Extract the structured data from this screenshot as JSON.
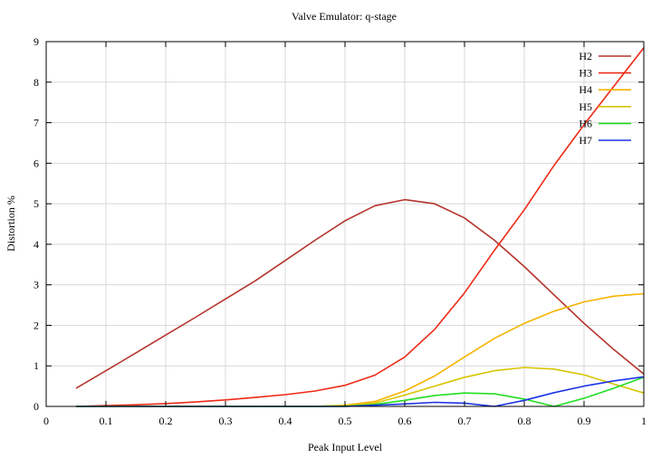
{
  "chart_data": {
    "type": "line",
    "title": "Valve Emulator: q-stage",
    "xlabel": "Peak Input Level",
    "ylabel": "Distortion %",
    "xlim": [
      0,
      1
    ],
    "ylim": [
      0,
      9
    ],
    "xticks": [
      "0",
      "0.1",
      "0.2",
      "0.3",
      "0.4",
      "0.5",
      "0.6",
      "0.7",
      "0.8",
      "0.9",
      "1"
    ],
    "yticks": [
      "0",
      "1",
      "2",
      "3",
      "4",
      "5",
      "6",
      "7",
      "8",
      "9"
    ],
    "grid": true,
    "legend_position": "top-right",
    "x": [
      0.05,
      0.1,
      0.15,
      0.2,
      0.25,
      0.3,
      0.35,
      0.4,
      0.45,
      0.5,
      0.55,
      0.6,
      0.65,
      0.7,
      0.75,
      0.8,
      0.85,
      0.9,
      0.95,
      1.0
    ],
    "series": [
      {
        "name": "H2",
        "color": "#b5342c",
        "values": [
          0.45,
          0.88,
          1.32,
          1.76,
          2.2,
          2.65,
          3.1,
          3.6,
          4.1,
          4.58,
          4.95,
          5.1,
          5.0,
          4.65,
          4.1,
          3.45,
          2.75,
          2.05,
          1.4,
          0.8
        ]
      },
      {
        "name": "H3",
        "color": "#ee2a16",
        "values": [
          0.0,
          0.02,
          0.04,
          0.07,
          0.11,
          0.16,
          0.22,
          0.29,
          0.38,
          0.52,
          0.77,
          1.22,
          1.9,
          2.8,
          3.85,
          4.85,
          5.95,
          6.95,
          7.9,
          8.85
        ]
      },
      {
        "name": "H4",
        "color": "#f5b400",
        "values": [
          0.0,
          0.0,
          0.0,
          0.0,
          0.0,
          0.0,
          0.0,
          0.0,
          0.0,
          0.03,
          0.12,
          0.38,
          0.75,
          1.22,
          1.68,
          2.05,
          2.35,
          2.58,
          2.72,
          2.78
        ]
      },
      {
        "name": "H5",
        "color": "#d7c400",
        "values": [
          0.0,
          0.0,
          0.0,
          0.0,
          0.0,
          0.0,
          0.0,
          0.0,
          0.0,
          0.02,
          0.08,
          0.28,
          0.5,
          0.72,
          0.88,
          0.96,
          0.92,
          0.78,
          0.55,
          0.33
        ]
      },
      {
        "name": "H6",
        "color": "#22dd22",
        "values": [
          0.0,
          0.0,
          0.0,
          0.0,
          0.0,
          0.0,
          0.0,
          0.0,
          0.0,
          0.0,
          0.05,
          0.15,
          0.27,
          0.33,
          0.31,
          0.18,
          0.0,
          0.2,
          0.45,
          0.72
        ]
      },
      {
        "name": "H7",
        "color": "#1c34e6",
        "values": [
          0.0,
          0.0,
          0.0,
          0.0,
          0.0,
          0.0,
          0.0,
          0.0,
          0.0,
          0.0,
          0.03,
          0.06,
          0.1,
          0.08,
          0.0,
          0.15,
          0.34,
          0.5,
          0.63,
          0.73
        ]
      }
    ]
  }
}
